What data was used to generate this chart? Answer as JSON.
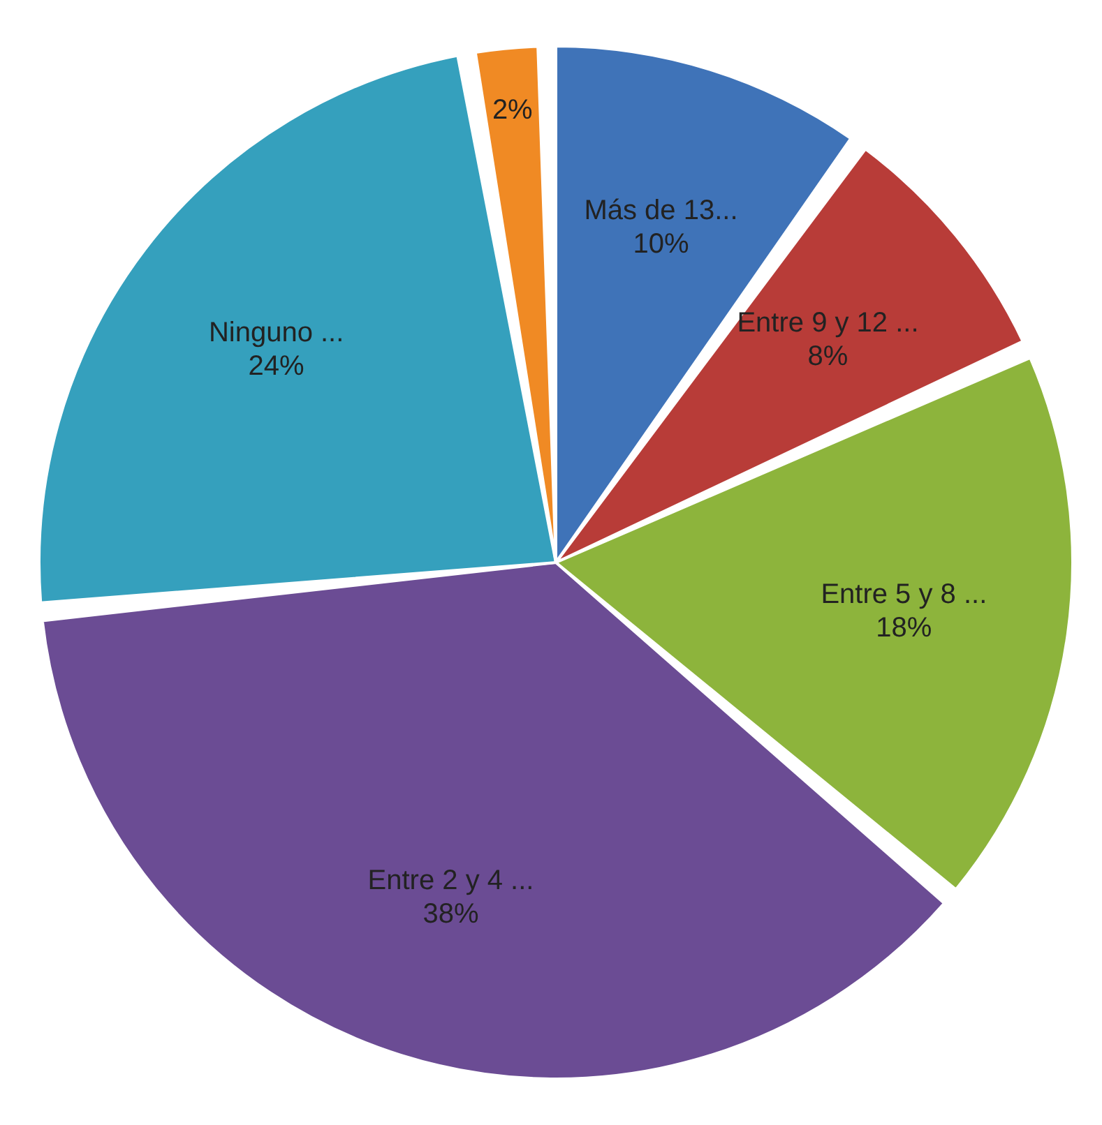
{
  "chart_data": {
    "type": "pie",
    "categories": [
      "Más de 13...",
      "Entre 9 y 12 ...",
      "Entre 5 y 8 ...",
      "Entre 2 y 4 ...",
      "Ninguno ...",
      null
    ],
    "values": [
      10,
      8,
      18,
      38,
      24,
      2
    ],
    "value_labels": [
      "10%",
      "8%",
      "18%",
      "38%",
      "24%",
      "2%"
    ],
    "colors": [
      "#3f73b8",
      "#b83c38",
      "#8db43c",
      "#6b4c94",
      "#35a0bd",
      "#f08a24"
    ],
    "legend": false
  }
}
